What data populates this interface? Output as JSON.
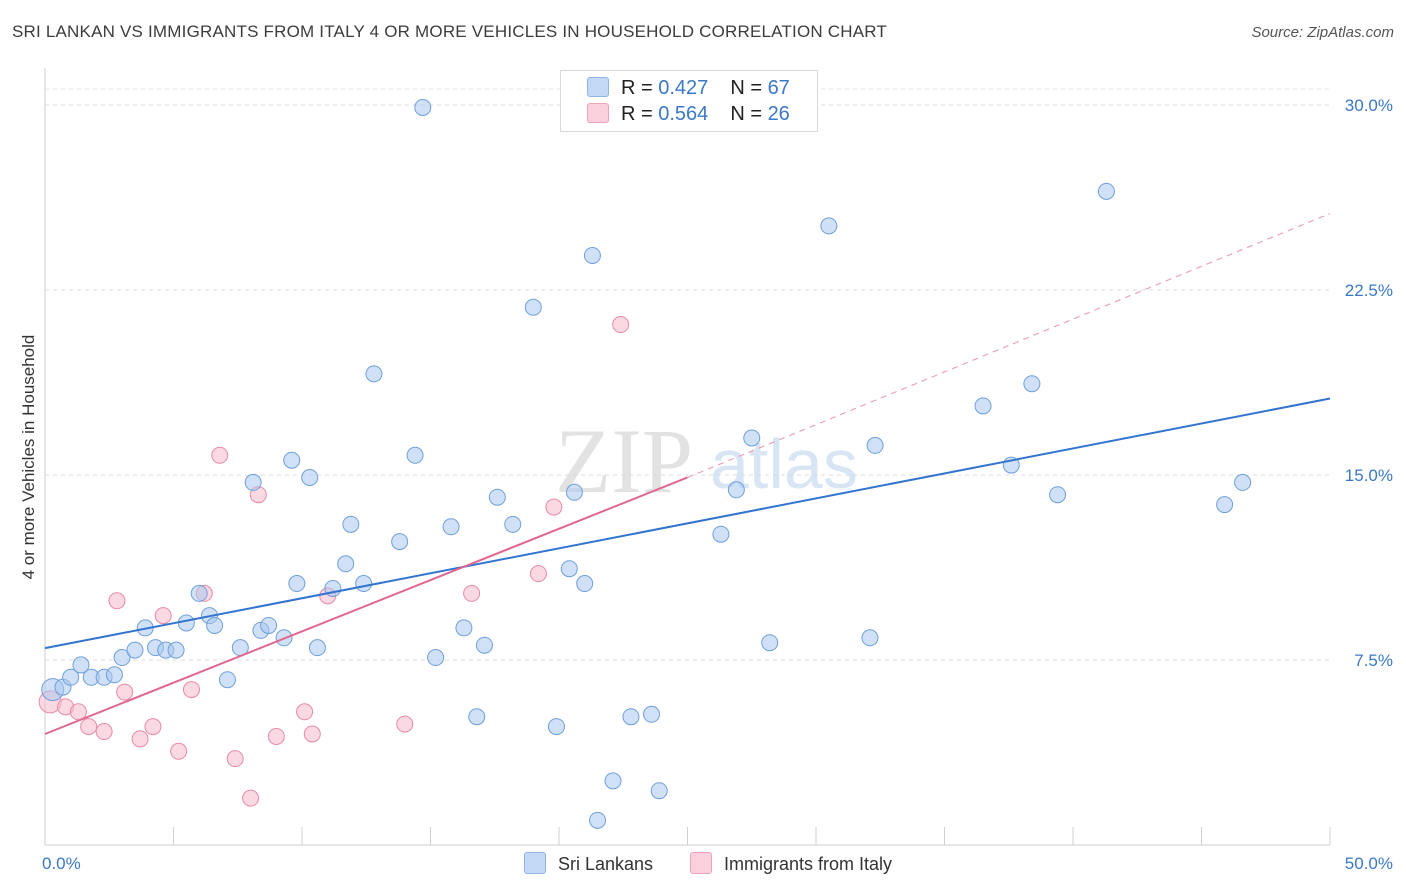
{
  "header": {
    "title": "SRI LANKAN VS IMMIGRANTS FROM ITALY 4 OR MORE VEHICLES IN HOUSEHOLD CORRELATION CHART",
    "source": "Source: ZipAtlas.com"
  },
  "watermark": {
    "zip": "ZIP",
    "atlas": "atlas"
  },
  "legend": {
    "series1": {
      "r_label": "R = ",
      "r_value": "0.427",
      "n_label": "N = ",
      "n_value": "67",
      "color": "#a9c8f0"
    },
    "series2": {
      "r_label": "R = ",
      "r_value": "0.564",
      "n_label": "N = ",
      "n_value": "26",
      "color": "#f6b9cb"
    }
  },
  "bottom_legend": {
    "series1_label": "Sri Lankans",
    "series2_label": "Immigrants from Italy"
  },
  "chart_data": {
    "type": "scatter",
    "title": "SRI LANKAN VS IMMIGRANTS FROM ITALY 4 OR MORE VEHICLES IN HOUSEHOLD CORRELATION CHART",
    "xlabel": "",
    "ylabel": "4 or more Vehicles in Household",
    "xlim": [
      0,
      50
    ],
    "ylim": [
      0,
      31.5
    ],
    "x_tick_labels": [
      {
        "value": 0,
        "label": "0.0%"
      },
      {
        "value": 50,
        "label": "50.0%"
      }
    ],
    "y_tick_labels": [
      {
        "value": 7.5,
        "label": "7.5%"
      },
      {
        "value": 15.0,
        "label": "15.0%"
      },
      {
        "value": 22.5,
        "label": "22.5%"
      },
      {
        "value": 30.0,
        "label": "30.0%"
      }
    ],
    "grid": true,
    "legend_position": "top-center",
    "series": [
      {
        "name": "Sri Lankans",
        "color": "#a9c8f0",
        "stroke": "#6f9fd8",
        "trend": {
          "x": [
            0,
            50
          ],
          "y": [
            7.98,
            18.1
          ],
          "color": "#3274d0",
          "style": "solid"
        },
        "points": [
          [
            0.3,
            6.3
          ],
          [
            0.7,
            6.4
          ],
          [
            1.0,
            6.8
          ],
          [
            1.4,
            7.3
          ],
          [
            1.8,
            6.8
          ],
          [
            2.3,
            6.8
          ],
          [
            2.7,
            6.9
          ],
          [
            3.0,
            7.6
          ],
          [
            3.5,
            7.9
          ],
          [
            3.9,
            8.8
          ],
          [
            4.3,
            8.0
          ],
          [
            4.7,
            7.9
          ],
          [
            5.1,
            7.9
          ],
          [
            5.5,
            9.0
          ],
          [
            6.0,
            10.2
          ],
          [
            6.4,
            9.3
          ],
          [
            6.6,
            8.9
          ],
          [
            7.1,
            6.7
          ],
          [
            7.6,
            8.0
          ],
          [
            8.1,
            14.7
          ],
          [
            8.4,
            8.7
          ],
          [
            8.7,
            8.9
          ],
          [
            9.3,
            8.4
          ],
          [
            9.6,
            15.6
          ],
          [
            9.8,
            10.6
          ],
          [
            10.3,
            14.9
          ],
          [
            10.6,
            8.0
          ],
          [
            11.2,
            10.4
          ],
          [
            11.7,
            11.4
          ],
          [
            11.9,
            13.0
          ],
          [
            12.4,
            10.6
          ],
          [
            12.8,
            19.1
          ],
          [
            13.8,
            12.3
          ],
          [
            14.4,
            15.8
          ],
          [
            14.7,
            29.9
          ],
          [
            15.2,
            7.6
          ],
          [
            15.8,
            12.9
          ],
          [
            16.3,
            8.8
          ],
          [
            16.8,
            5.2
          ],
          [
            17.1,
            8.1
          ],
          [
            17.6,
            14.1
          ],
          [
            18.2,
            13.0
          ],
          [
            19.0,
            21.8
          ],
          [
            19.9,
            4.8
          ],
          [
            20.4,
            11.2
          ],
          [
            20.6,
            14.3
          ],
          [
            21.0,
            10.6
          ],
          [
            21.3,
            23.9
          ],
          [
            21.5,
            1.0
          ],
          [
            22.1,
            2.6
          ],
          [
            22.8,
            5.2
          ],
          [
            23.6,
            5.3
          ],
          [
            23.9,
            2.2
          ],
          [
            26.3,
            12.6
          ],
          [
            26.9,
            14.4
          ],
          [
            27.5,
            16.5
          ],
          [
            28.2,
            8.2
          ],
          [
            30.5,
            25.1
          ],
          [
            32.1,
            8.4
          ],
          [
            32.3,
            16.2
          ],
          [
            36.5,
            17.8
          ],
          [
            37.6,
            15.4
          ],
          [
            38.4,
            18.7
          ],
          [
            39.4,
            14.2
          ],
          [
            41.3,
            26.5
          ],
          [
            45.9,
            13.8
          ],
          [
            46.6,
            14.7
          ]
        ]
      },
      {
        "name": "Immigrants from Italy",
        "color": "#f6b9cb",
        "stroke": "#e88aa6",
        "trend": {
          "x": [
            0,
            25
          ],
          "y": [
            4.5,
            14.9
          ],
          "color": "#e06890",
          "style": "solid",
          "extension": {
            "x": [
              25,
              50
            ],
            "y": [
              14.9,
              25.6
            ],
            "style": "dashed"
          }
        },
        "points": [
          [
            0.2,
            5.8
          ],
          [
            0.8,
            5.6
          ],
          [
            1.3,
            5.4
          ],
          [
            1.7,
            4.8
          ],
          [
            2.3,
            4.6
          ],
          [
            2.8,
            9.9
          ],
          [
            3.1,
            6.2
          ],
          [
            3.7,
            4.3
          ],
          [
            4.2,
            4.8
          ],
          [
            4.6,
            9.3
          ],
          [
            5.2,
            3.8
          ],
          [
            5.7,
            6.3
          ],
          [
            6.2,
            10.2
          ],
          [
            6.8,
            15.8
          ],
          [
            7.4,
            3.5
          ],
          [
            8.0,
            1.9
          ],
          [
            8.3,
            14.2
          ],
          [
            9.0,
            4.4
          ],
          [
            10.1,
            5.4
          ],
          [
            10.4,
            4.5
          ],
          [
            11.0,
            10.1
          ],
          [
            14.0,
            4.9
          ],
          [
            16.6,
            10.2
          ],
          [
            19.2,
            11.0
          ],
          [
            19.8,
            13.7
          ],
          [
            22.4,
            21.1
          ]
        ]
      }
    ]
  }
}
